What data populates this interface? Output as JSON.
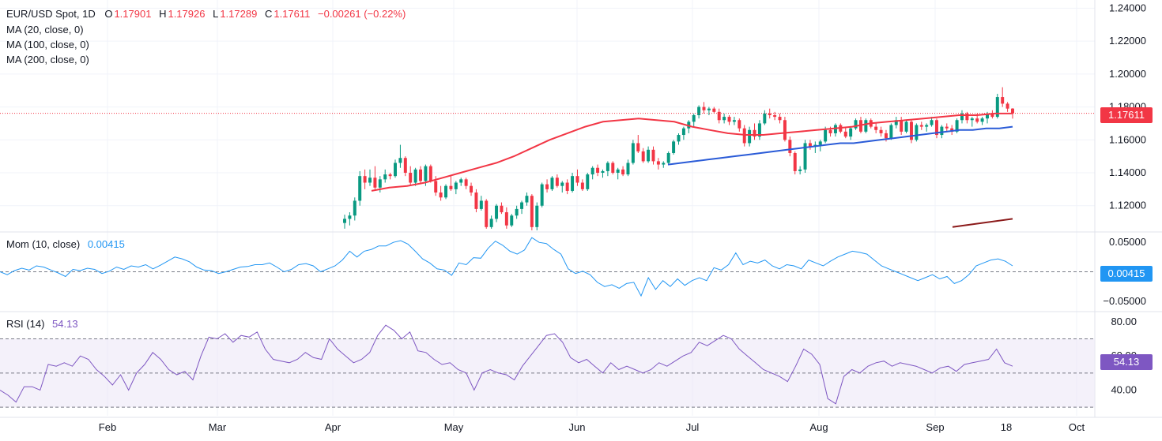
{
  "header": {
    "symbol": "EUR/USD Spot, 1D",
    "open_label": "O",
    "open": "1.17901",
    "high_label": "H",
    "high": "1.17926",
    "low_label": "L",
    "low": "1.17289",
    "close_label": "C",
    "close": "1.17611",
    "change": "−0.00261 (−0.22%)",
    "ma20": "MA (20, close, 0)",
    "ma100": "MA (100, close, 0)",
    "ma200": "MA (200, close, 0)"
  },
  "momentum": {
    "label": "Mom (10, close)",
    "value": "0.00415",
    "ticks": [
      "0.05000",
      "−0.05000"
    ]
  },
  "rsi": {
    "label": "RSI (14)",
    "value": "54.13",
    "ticks": [
      "80.00",
      "60.00",
      "40.00"
    ]
  },
  "price_axis": {
    "ticks": [
      "1.24000",
      "1.22000",
      "1.20000",
      "1.18000",
      "1.16000",
      "1.14000",
      "1.12000"
    ],
    "last_price": "1.17611"
  },
  "time_axis": {
    "labels": [
      "Feb",
      "Mar",
      "Apr",
      "May",
      "Jun",
      "Jul",
      "Aug",
      "Sep",
      "18",
      "Oct"
    ]
  },
  "colors": {
    "up": "#089981",
    "down": "#f23645",
    "ma20": "#f23645",
    "ma100": "#2a5bd7",
    "ma200": "#8b1a1a",
    "mom": "#2196f3",
    "rsi": "#7e57c2",
    "rsi_band": "#ede7f6"
  },
  "chart_data": {
    "type": "candlestick",
    "price_range": [
      1.105,
      1.245
    ],
    "mom_range": [
      -0.065,
      0.065
    ],
    "rsi_range": [
      25,
      85
    ],
    "candles": [
      {
        "o": 1.1095,
        "h": 1.1145,
        "l": 1.106,
        "c": 1.112
      },
      {
        "o": 1.112,
        "h": 1.116,
        "l": 1.108,
        "c": 1.114
      },
      {
        "o": 1.114,
        "h": 1.125,
        "l": 1.111,
        "c": 1.123
      },
      {
        "o": 1.123,
        "h": 1.141,
        "l": 1.12,
        "c": 1.138
      },
      {
        "o": 1.138,
        "h": 1.142,
        "l": 1.13,
        "c": 1.134
      },
      {
        "o": 1.134,
        "h": 1.142,
        "l": 1.132,
        "c": 1.137
      },
      {
        "o": 1.137,
        "h": 1.144,
        "l": 1.13,
        "c": 1.131
      },
      {
        "o": 1.131,
        "h": 1.138,
        "l": 1.128,
        "c": 1.136
      },
      {
        "o": 1.136,
        "h": 1.142,
        "l": 1.134,
        "c": 1.139
      },
      {
        "o": 1.139,
        "h": 1.14,
        "l": 1.136,
        "c": 1.138
      },
      {
        "o": 1.138,
        "h": 1.148,
        "l": 1.137,
        "c": 1.146
      },
      {
        "o": 1.146,
        "h": 1.157,
        "l": 1.143,
        "c": 1.149
      },
      {
        "o": 1.149,
        "h": 1.15,
        "l": 1.138,
        "c": 1.14
      },
      {
        "o": 1.14,
        "h": 1.144,
        "l": 1.132,
        "c": 1.134
      },
      {
        "o": 1.134,
        "h": 1.143,
        "l": 1.132,
        "c": 1.142
      },
      {
        "o": 1.142,
        "h": 1.144,
        "l": 1.133,
        "c": 1.135
      },
      {
        "o": 1.135,
        "h": 1.145,
        "l": 1.132,
        "c": 1.144
      },
      {
        "o": 1.144,
        "h": 1.145,
        "l": 1.134,
        "c": 1.135
      },
      {
        "o": 1.135,
        "h": 1.138,
        "l": 1.126,
        "c": 1.128
      },
      {
        "o": 1.128,
        "h": 1.132,
        "l": 1.123,
        "c": 1.125
      },
      {
        "o": 1.125,
        "h": 1.133,
        "l": 1.124,
        "c": 1.132
      },
      {
        "o": 1.132,
        "h": 1.138,
        "l": 1.129,
        "c": 1.13
      },
      {
        "o": 1.13,
        "h": 1.135,
        "l": 1.127,
        "c": 1.134
      },
      {
        "o": 1.134,
        "h": 1.137,
        "l": 1.132,
        "c": 1.136
      },
      {
        "o": 1.136,
        "h": 1.137,
        "l": 1.13,
        "c": 1.132
      },
      {
        "o": 1.132,
        "h": 1.134,
        "l": 1.126,
        "c": 1.128
      },
      {
        "o": 1.128,
        "h": 1.13,
        "l": 1.116,
        "c": 1.118
      },
      {
        "o": 1.118,
        "h": 1.126,
        "l": 1.117,
        "c": 1.123
      },
      {
        "o": 1.123,
        "h": 1.124,
        "l": 1.106,
        "c": 1.107
      },
      {
        "o": 1.107,
        "h": 1.114,
        "l": 1.106,
        "c": 1.112
      },
      {
        "o": 1.112,
        "h": 1.121,
        "l": 1.11,
        "c": 1.12
      },
      {
        "o": 1.12,
        "h": 1.122,
        "l": 1.115,
        "c": 1.116
      },
      {
        "o": 1.116,
        "h": 1.119,
        "l": 1.106,
        "c": 1.108
      },
      {
        "o": 1.108,
        "h": 1.115,
        "l": 1.107,
        "c": 1.114
      },
      {
        "o": 1.114,
        "h": 1.12,
        "l": 1.112,
        "c": 1.118
      },
      {
        "o": 1.118,
        "h": 1.123,
        "l": 1.115,
        "c": 1.122
      },
      {
        "o": 1.122,
        "h": 1.128,
        "l": 1.12,
        "c": 1.126
      },
      {
        "o": 1.126,
        "h": 1.127,
        "l": 1.105,
        "c": 1.107
      },
      {
        "o": 1.107,
        "h": 1.122,
        "l": 1.105,
        "c": 1.12
      },
      {
        "o": 1.12,
        "h": 1.134,
        "l": 1.119,
        "c": 1.133
      },
      {
        "o": 1.133,
        "h": 1.136,
        "l": 1.128,
        "c": 1.13
      },
      {
        "o": 1.13,
        "h": 1.138,
        "l": 1.129,
        "c": 1.137
      },
      {
        "o": 1.137,
        "h": 1.139,
        "l": 1.131,
        "c": 1.132
      },
      {
        "o": 1.132,
        "h": 1.135,
        "l": 1.128,
        "c": 1.134
      },
      {
        "o": 1.134,
        "h": 1.136,
        "l": 1.127,
        "c": 1.129
      },
      {
        "o": 1.129,
        "h": 1.14,
        "l": 1.128,
        "c": 1.138
      },
      {
        "o": 1.138,
        "h": 1.142,
        "l": 1.132,
        "c": 1.134
      },
      {
        "o": 1.134,
        "h": 1.136,
        "l": 1.129,
        "c": 1.13
      },
      {
        "o": 1.13,
        "h": 1.14,
        "l": 1.129,
        "c": 1.139
      },
      {
        "o": 1.139,
        "h": 1.144,
        "l": 1.136,
        "c": 1.143
      },
      {
        "o": 1.143,
        "h": 1.145,
        "l": 1.138,
        "c": 1.14
      },
      {
        "o": 1.14,
        "h": 1.142,
        "l": 1.137,
        "c": 1.141
      },
      {
        "o": 1.141,
        "h": 1.147,
        "l": 1.138,
        "c": 1.146
      },
      {
        "o": 1.146,
        "h": 1.147,
        "l": 1.139,
        "c": 1.14
      },
      {
        "o": 1.14,
        "h": 1.143,
        "l": 1.136,
        "c": 1.142
      },
      {
        "o": 1.142,
        "h": 1.144,
        "l": 1.138,
        "c": 1.139
      },
      {
        "o": 1.139,
        "h": 1.148,
        "l": 1.138,
        "c": 1.146
      },
      {
        "o": 1.146,
        "h": 1.16,
        "l": 1.145,
        "c": 1.158
      },
      {
        "o": 1.158,
        "h": 1.163,
        "l": 1.152,
        "c": 1.153
      },
      {
        "o": 1.153,
        "h": 1.155,
        "l": 1.146,
        "c": 1.147
      },
      {
        "o": 1.147,
        "h": 1.156,
        "l": 1.146,
        "c": 1.154
      },
      {
        "o": 1.154,
        "h": 1.156,
        "l": 1.145,
        "c": 1.147
      },
      {
        "o": 1.147,
        "h": 1.149,
        "l": 1.142,
        "c": 1.145
      },
      {
        "o": 1.145,
        "h": 1.147,
        "l": 1.143,
        "c": 1.146
      },
      {
        "o": 1.146,
        "h": 1.153,
        "l": 1.145,
        "c": 1.152
      },
      {
        "o": 1.152,
        "h": 1.16,
        "l": 1.151,
        "c": 1.159
      },
      {
        "o": 1.159,
        "h": 1.164,
        "l": 1.157,
        "c": 1.163
      },
      {
        "o": 1.163,
        "h": 1.168,
        "l": 1.16,
        "c": 1.167
      },
      {
        "o": 1.167,
        "h": 1.172,
        "l": 1.164,
        "c": 1.171
      },
      {
        "o": 1.171,
        "h": 1.176,
        "l": 1.168,
        "c": 1.175
      },
      {
        "o": 1.175,
        "h": 1.181,
        "l": 1.173,
        "c": 1.18
      },
      {
        "o": 1.18,
        "h": 1.183,
        "l": 1.176,
        "c": 1.178
      },
      {
        "o": 1.178,
        "h": 1.18,
        "l": 1.175,
        "c": 1.179
      },
      {
        "o": 1.179,
        "h": 1.18,
        "l": 1.176,
        "c": 1.177
      },
      {
        "o": 1.177,
        "h": 1.179,
        "l": 1.17,
        "c": 1.172
      },
      {
        "o": 1.172,
        "h": 1.176,
        "l": 1.17,
        "c": 1.174
      },
      {
        "o": 1.174,
        "h": 1.175,
        "l": 1.169,
        "c": 1.171
      },
      {
        "o": 1.171,
        "h": 1.174,
        "l": 1.169,
        "c": 1.172
      },
      {
        "o": 1.172,
        "h": 1.173,
        "l": 1.165,
        "c": 1.167
      },
      {
        "o": 1.167,
        "h": 1.169,
        "l": 1.156,
        "c": 1.158
      },
      {
        "o": 1.158,
        "h": 1.168,
        "l": 1.156,
        "c": 1.166
      },
      {
        "o": 1.166,
        "h": 1.17,
        "l": 1.16,
        "c": 1.162
      },
      {
        "o": 1.162,
        "h": 1.172,
        "l": 1.16,
        "c": 1.17
      },
      {
        "o": 1.17,
        "h": 1.178,
        "l": 1.169,
        "c": 1.176
      },
      {
        "o": 1.176,
        "h": 1.179,
        "l": 1.173,
        "c": 1.175
      },
      {
        "o": 1.175,
        "h": 1.177,
        "l": 1.172,
        "c": 1.174
      },
      {
        "o": 1.174,
        "h": 1.176,
        "l": 1.17,
        "c": 1.172
      },
      {
        "o": 1.172,
        "h": 1.174,
        "l": 1.159,
        "c": 1.16
      },
      {
        "o": 1.16,
        "h": 1.162,
        "l": 1.15,
        "c": 1.152
      },
      {
        "o": 1.152,
        "h": 1.153,
        "l": 1.139,
        "c": 1.141
      },
      {
        "o": 1.141,
        "h": 1.144,
        "l": 1.139,
        "c": 1.142
      },
      {
        "o": 1.142,
        "h": 1.16,
        "l": 1.14,
        "c": 1.158
      },
      {
        "o": 1.158,
        "h": 1.16,
        "l": 1.154,
        "c": 1.156
      },
      {
        "o": 1.156,
        "h": 1.159,
        "l": 1.152,
        "c": 1.157
      },
      {
        "o": 1.157,
        "h": 1.16,
        "l": 1.153,
        "c": 1.159
      },
      {
        "o": 1.159,
        "h": 1.168,
        "l": 1.158,
        "c": 1.166
      },
      {
        "o": 1.166,
        "h": 1.168,
        "l": 1.162,
        "c": 1.164
      },
      {
        "o": 1.164,
        "h": 1.17,
        "l": 1.162,
        "c": 1.169
      },
      {
        "o": 1.169,
        "h": 1.17,
        "l": 1.164,
        "c": 1.165
      },
      {
        "o": 1.165,
        "h": 1.168,
        "l": 1.161,
        "c": 1.162
      },
      {
        "o": 1.162,
        "h": 1.168,
        "l": 1.16,
        "c": 1.167
      },
      {
        "o": 1.167,
        "h": 1.173,
        "l": 1.166,
        "c": 1.172
      },
      {
        "o": 1.172,
        "h": 1.174,
        "l": 1.164,
        "c": 1.165
      },
      {
        "o": 1.165,
        "h": 1.173,
        "l": 1.164,
        "c": 1.172
      },
      {
        "o": 1.172,
        "h": 1.173,
        "l": 1.167,
        "c": 1.168
      },
      {
        "o": 1.168,
        "h": 1.17,
        "l": 1.164,
        "c": 1.166
      },
      {
        "o": 1.166,
        "h": 1.168,
        "l": 1.162,
        "c": 1.164
      },
      {
        "o": 1.164,
        "h": 1.166,
        "l": 1.159,
        "c": 1.161
      },
      {
        "o": 1.161,
        "h": 1.17,
        "l": 1.16,
        "c": 1.169
      },
      {
        "o": 1.169,
        "h": 1.174,
        "l": 1.167,
        "c": 1.172
      },
      {
        "o": 1.172,
        "h": 1.174,
        "l": 1.163,
        "c": 1.165
      },
      {
        "o": 1.165,
        "h": 1.172,
        "l": 1.164,
        "c": 1.171
      },
      {
        "o": 1.171,
        "h": 1.172,
        "l": 1.158,
        "c": 1.16
      },
      {
        "o": 1.16,
        "h": 1.17,
        "l": 1.159,
        "c": 1.169
      },
      {
        "o": 1.169,
        "h": 1.171,
        "l": 1.166,
        "c": 1.168
      },
      {
        "o": 1.168,
        "h": 1.17,
        "l": 1.165,
        "c": 1.169
      },
      {
        "o": 1.169,
        "h": 1.174,
        "l": 1.168,
        "c": 1.172
      },
      {
        "o": 1.172,
        "h": 1.173,
        "l": 1.161,
        "c": 1.163
      },
      {
        "o": 1.163,
        "h": 1.169,
        "l": 1.161,
        "c": 1.168
      },
      {
        "o": 1.168,
        "h": 1.17,
        "l": 1.165,
        "c": 1.167
      },
      {
        "o": 1.167,
        "h": 1.169,
        "l": 1.163,
        "c": 1.165
      },
      {
        "o": 1.165,
        "h": 1.173,
        "l": 1.164,
        "c": 1.172
      },
      {
        "o": 1.172,
        "h": 1.178,
        "l": 1.17,
        "c": 1.176
      },
      {
        "o": 1.176,
        "h": 1.177,
        "l": 1.17,
        "c": 1.172
      },
      {
        "o": 1.172,
        "h": 1.174,
        "l": 1.168,
        "c": 1.173
      },
      {
        "o": 1.173,
        "h": 1.176,
        "l": 1.17,
        "c": 1.171
      },
      {
        "o": 1.171,
        "h": 1.174,
        "l": 1.169,
        "c": 1.173
      },
      {
        "o": 1.173,
        "h": 1.177,
        "l": 1.17,
        "c": 1.176
      },
      {
        "o": 1.176,
        "h": 1.178,
        "l": 1.173,
        "c": 1.174
      },
      {
        "o": 1.174,
        "h": 1.188,
        "l": 1.173,
        "c": 1.186
      },
      {
        "o": 1.186,
        "h": 1.192,
        "l": 1.18,
        "c": 1.182
      },
      {
        "o": 1.182,
        "h": 1.183,
        "l": 1.177,
        "c": 1.179
      },
      {
        "o": 1.17901,
        "h": 1.17926,
        "l": 1.17289,
        "c": 1.17611
      }
    ],
    "ma20": [
      [
        1.137,
        1.129
      ],
      [
        1.138,
        1.131
      ],
      [
        1.139,
        1.132
      ],
      [
        1.139,
        1.134
      ],
      [
        1.14,
        1.137
      ],
      [
        1.14,
        1.14
      ],
      [
        1.141,
        1.143
      ],
      [
        1.142,
        1.146
      ],
      [
        1.143,
        1.15
      ],
      [
        1.144,
        1.155
      ],
      [
        1.145,
        1.16
      ],
      [
        1.146,
        1.164
      ],
      [
        1.147,
        1.168
      ],
      [
        1.148,
        1.171
      ],
      [
        1.149,
        1.172
      ],
      [
        1.15,
        1.173
      ],
      [
        1.151,
        1.172
      ],
      [
        1.152,
        1.171
      ],
      [
        1.153,
        1.168
      ],
      [
        1.154,
        1.166
      ],
      [
        1.155,
        1.164
      ],
      [
        1.156,
        1.163
      ],
      [
        1.157,
        1.163
      ],
      [
        1.158,
        1.164
      ],
      [
        1.158,
        1.165
      ],
      [
        1.159,
        1.166
      ],
      [
        1.16,
        1.167
      ],
      [
        1.161,
        1.168
      ],
      [
        1.162,
        1.17
      ],
      [
        1.163,
        1.171
      ],
      [
        1.164,
        1.172
      ],
      [
        1.165,
        1.173
      ],
      [
        1.166,
        1.174
      ],
      [
        1.166,
        1.175
      ],
      [
        1.167,
        1.175
      ],
      [
        1.167,
        1.176
      ],
      [
        1.168,
        1.176
      ]
    ],
    "ma200": [
      1.107,
      1.112
    ],
    "mom": [
      0.0,
      -0.005,
      0.002,
      0.006,
      0.003,
      0.01,
      0.008,
      0.003,
      -0.002,
      -0.008,
      0.004,
      0.002,
      0.006,
      0.004,
      -0.003,
      0.001,
      0.008,
      0.004,
      0.01,
      0.008,
      0.012,
      0.005,
      0.011,
      0.018,
      0.025,
      0.022,
      0.017,
      0.008,
      0.003,
      0.002,
      -0.003,
      0.0,
      0.004,
      0.008,
      0.009,
      0.012,
      0.012,
      0.015,
      0.008,
      0.0,
      0.004,
      0.012,
      0.014,
      0.01,
      0.0,
      0.005,
      0.01,
      0.02,
      0.035,
      0.025,
      0.035,
      0.038,
      0.044,
      0.044,
      0.05,
      0.053,
      0.047,
      0.035,
      0.022,
      0.015,
      0.005,
      0.003,
      -0.006,
      0.015,
      0.012,
      0.024,
      0.023,
      0.04,
      0.052,
      0.045,
      0.035,
      0.03,
      0.037,
      0.058,
      0.05,
      0.048,
      0.038,
      0.03,
      0.005,
      -0.003,
      0.001,
      -0.005,
      -0.018,
      -0.025,
      -0.022,
      -0.028,
      -0.02,
      -0.018,
      -0.041,
      -0.01,
      -0.03,
      -0.015,
      -0.025,
      -0.012,
      -0.023,
      -0.015,
      -0.01,
      -0.015,
      0.007,
      0.003,
      0.012,
      0.032,
      0.012,
      0.018,
      0.015,
      0.02,
      0.01,
      0.005,
      0.012,
      0.01,
      0.005,
      0.02,
      0.015,
      0.01,
      0.018,
      0.025,
      0.03,
      0.035,
      0.033,
      0.03,
      0.02,
      0.01,
      0.005,
      0.0,
      -0.005,
      -0.01,
      -0.015,
      -0.01,
      -0.005,
      -0.012,
      -0.008,
      -0.02,
      -0.015,
      -0.005,
      0.01,
      0.015,
      0.02,
      0.022,
      0.018,
      0.01
    ],
    "rsi": [
      40,
      37,
      33,
      42,
      42,
      40,
      55,
      54,
      56,
      54,
      60,
      58,
      52,
      48,
      43,
      49,
      40,
      50,
      55,
      62,
      58,
      52,
      49,
      51,
      46,
      60,
      71,
      70,
      73,
      68,
      72,
      71,
      74,
      64,
      58,
      57,
      56,
      58,
      62,
      59,
      58,
      70,
      64,
      60,
      56,
      58,
      62,
      72,
      78,
      75,
      70,
      74,
      63,
      62,
      58,
      55,
      56,
      52,
      50,
      40,
      50,
      52,
      50,
      49,
      46,
      54,
      60,
      66,
      72,
      73,
      68,
      59,
      56,
      58,
      54,
      50,
      56,
      52,
      54,
      52,
      50,
      52,
      56,
      54,
      57,
      60,
      62,
      68,
      66,
      69,
      72,
      70,
      64,
      60,
      56,
      52,
      50,
      48,
      45,
      54,
      64,
      61,
      55,
      35,
      32,
      48,
      52,
      50,
      54,
      56,
      57,
      54,
      56,
      55,
      54,
      52,
      50,
      53,
      54,
      51,
      55,
      56,
      57,
      58,
      64,
      56,
      54
    ],
    "time_labels": [
      "Feb",
      "Mar",
      "Apr",
      "May",
      "Jun",
      "Jul",
      "Aug",
      "Sep",
      "18",
      "Oct"
    ]
  }
}
